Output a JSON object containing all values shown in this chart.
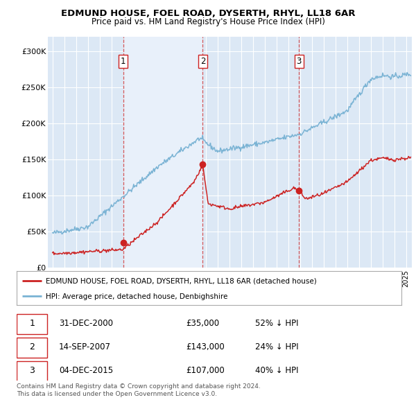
{
  "title": "EDMUND HOUSE, FOEL ROAD, DYSERTH, RHYL, LL18 6AR",
  "subtitle": "Price paid vs. HM Land Registry's House Price Index (HPI)",
  "ylim": [
    0,
    320000
  ],
  "yticks": [
    0,
    50000,
    100000,
    150000,
    200000,
    250000,
    300000
  ],
  "ytick_labels": [
    "£0",
    "£50K",
    "£100K",
    "£150K",
    "£200K",
    "£250K",
    "£300K"
  ],
  "background_color": "#ffffff",
  "plot_bg_color": "#dce8f5",
  "grid_color": "#ffffff",
  "hpi_color": "#7ab3d4",
  "price_color": "#cc2222",
  "shade_color": "#e8f0fa",
  "sale_points": [
    {
      "date_num": 2001.0,
      "price": 35000,
      "label": "1",
      "date_str": "31-DEC-2000",
      "pct": "52% ↓ HPI"
    },
    {
      "date_num": 2007.75,
      "price": 143000,
      "label": "2",
      "date_str": "14-SEP-2007",
      "pct": "24% ↓ HPI"
    },
    {
      "date_num": 2015.92,
      "price": 107000,
      "label": "3",
      "date_str": "04-DEC-2015",
      "pct": "40% ↓ HPI"
    }
  ],
  "legend_property_label": "EDMUND HOUSE, FOEL ROAD, DYSERTH, RHYL, LL18 6AR (detached house)",
  "legend_hpi_label": "HPI: Average price, detached house, Denbighshire",
  "footer_text": "Contains HM Land Registry data © Crown copyright and database right 2024.\nThis data is licensed under the Open Government Licence v3.0.",
  "xmin": 1994.6,
  "xmax": 2025.5
}
